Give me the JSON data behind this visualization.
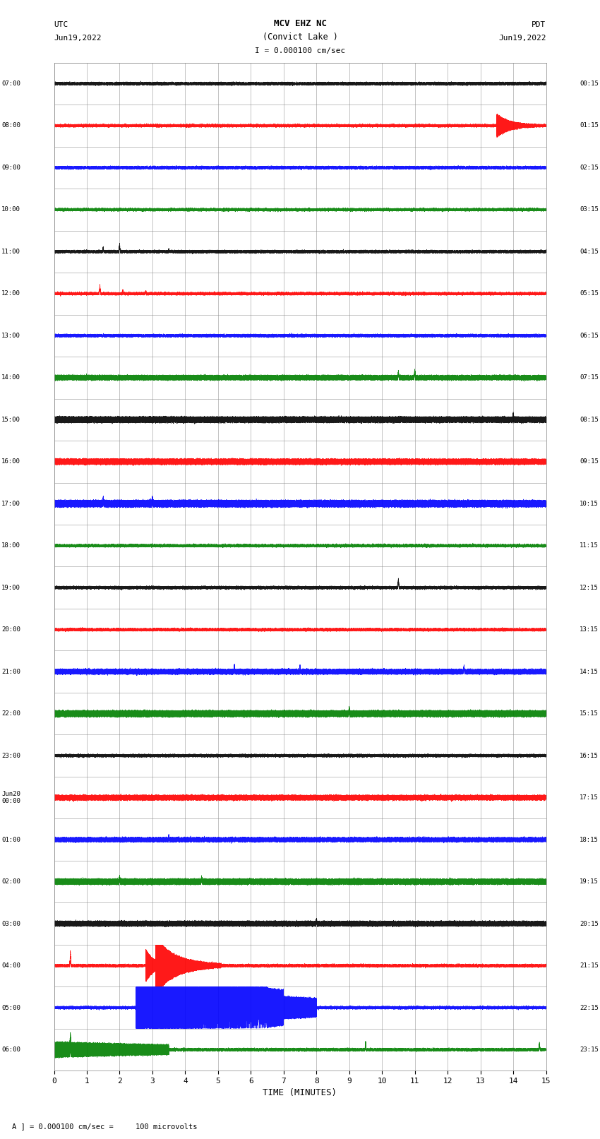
{
  "title_line1": "MCV EHZ NC",
  "title_line2": "(Convict Lake )",
  "title_line3": "I = 0.000100 cm/sec",
  "utc_label": "UTC",
  "utc_date": "Jun19,2022",
  "pdt_label": "PDT",
  "pdt_date": "Jun19,2022",
  "xlabel": "TIME (MINUTES)",
  "footer": "A ] = 0.000100 cm/sec =     100 microvolts",
  "x_min": 0,
  "x_max": 15,
  "x_ticks": [
    0,
    1,
    2,
    3,
    4,
    5,
    6,
    7,
    8,
    9,
    10,
    11,
    12,
    13,
    14,
    15
  ],
  "n_rows": 24,
  "background_color": "#ffffff",
  "grid_color": "#888888",
  "left_times": [
    "07:00",
    "08:00",
    "09:00",
    "10:00",
    "11:00",
    "12:00",
    "13:00",
    "14:00",
    "15:00",
    "16:00",
    "17:00",
    "18:00",
    "19:00",
    "20:00",
    "21:00",
    "22:00",
    "23:00",
    "Jun20\n00:00",
    "01:00",
    "02:00",
    "03:00",
    "04:00",
    "05:00",
    "06:00"
  ],
  "right_times": [
    "00:15",
    "01:15",
    "02:15",
    "03:15",
    "04:15",
    "05:15",
    "06:15",
    "07:15",
    "08:15",
    "09:15",
    "10:15",
    "11:15",
    "12:15",
    "13:15",
    "14:15",
    "15:15",
    "16:15",
    "17:15",
    "18:15",
    "19:15",
    "20:15",
    "21:15",
    "22:15",
    "23:15"
  ],
  "trace_colors_cycle": [
    "black",
    "red",
    "blue",
    "green"
  ],
  "seed": 42
}
